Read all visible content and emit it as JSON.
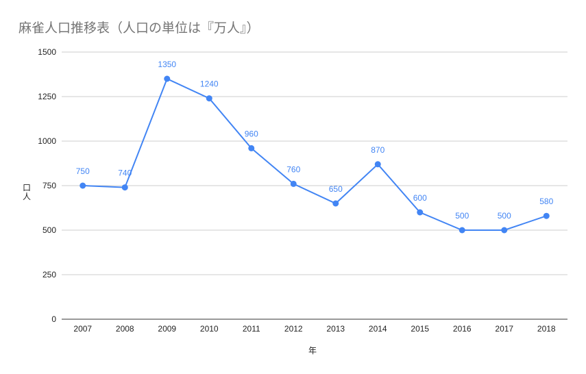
{
  "chart_data": {
    "type": "line",
    "title": "麻雀人口推移表（人口の単位は『万人』）",
    "xlabel": "年",
    "ylabel": "人口",
    "categories": [
      "2007",
      "2008",
      "2009",
      "2010",
      "2011",
      "2012",
      "2013",
      "2014",
      "2015",
      "2016",
      "2017",
      "2018"
    ],
    "series": [
      {
        "values": [
          750,
          740,
          1350,
          1240,
          960,
          760,
          650,
          870,
          600,
          500,
          500,
          580
        ],
        "data_labels": true
      }
    ],
    "ylim": [
      0,
      1500
    ],
    "yticks": [
      0,
      250,
      500,
      750,
      1000,
      1250,
      1500
    ],
    "grid": true,
    "legend": "none",
    "colors": {
      "series": "#4285f4",
      "grid": "#cccccc",
      "label": "#4285f4"
    }
  }
}
